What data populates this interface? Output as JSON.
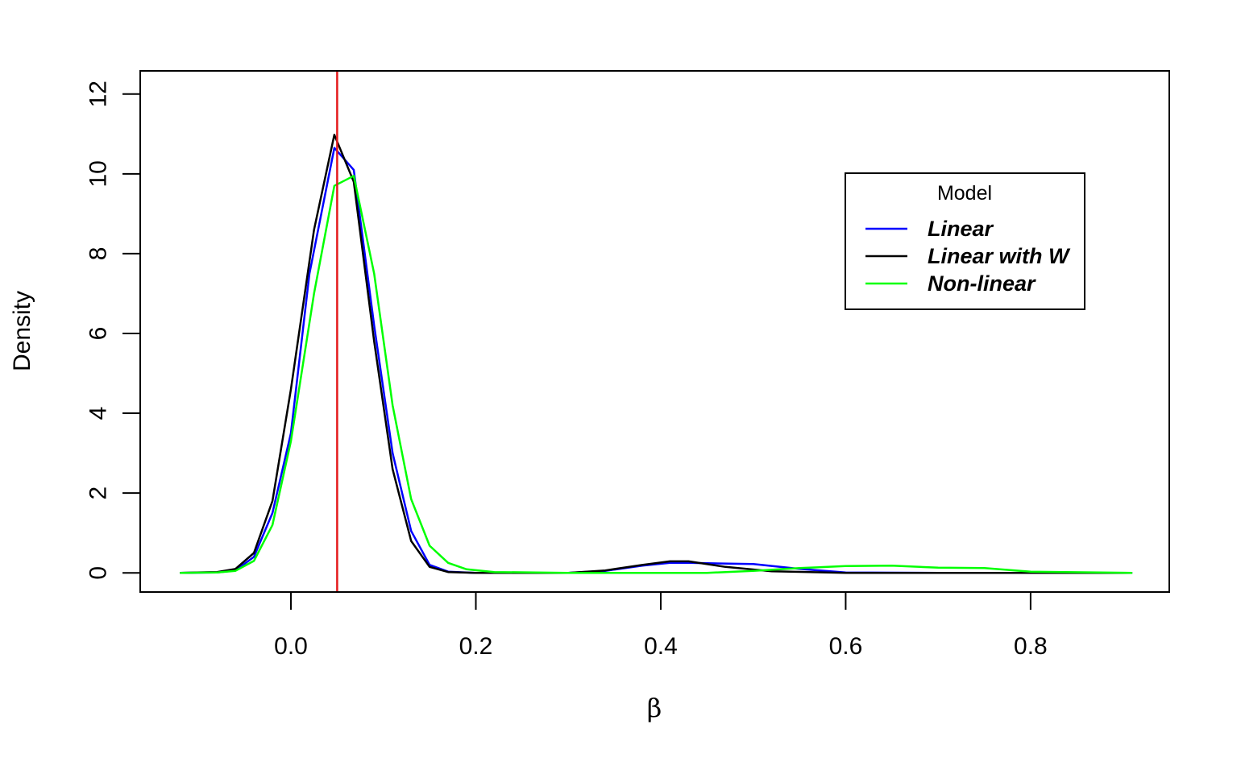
{
  "chart_data": {
    "type": "line",
    "title": "",
    "xlabel": "β",
    "ylabel": "Density",
    "xlim": [
      -0.163,
      0.95
    ],
    "ylim": [
      -0.48,
      12.58
    ],
    "xticks": [
      0.0,
      0.2,
      0.4,
      0.6,
      0.8
    ],
    "xtick_labels": [
      "0.0",
      "0.2",
      "0.4",
      "0.6",
      "0.8"
    ],
    "yticks": [
      0,
      2,
      4,
      6,
      8,
      10,
      12
    ],
    "ytick_labels": [
      "0",
      "2",
      "4",
      "6",
      "8",
      "10",
      "12"
    ],
    "grid": false,
    "legend": {
      "title": "Model",
      "placement": "top-right"
    },
    "reference_line": {
      "x": 0.05,
      "color": "#e41a1c"
    },
    "series": [
      {
        "name": "Linear",
        "color": "#0000ff",
        "points": [
          [
            -0.12,
            0
          ],
          [
            -0.08,
            0.01
          ],
          [
            -0.06,
            0.06
          ],
          [
            -0.04,
            0.4
          ],
          [
            -0.02,
            1.5
          ],
          [
            0.0,
            3.5
          ],
          [
            0.02,
            7.5
          ],
          [
            0.047,
            10.65
          ],
          [
            0.068,
            10.1
          ],
          [
            0.09,
            6.2
          ],
          [
            0.11,
            3.0
          ],
          [
            0.13,
            1.05
          ],
          [
            0.15,
            0.2
          ],
          [
            0.17,
            0.03
          ],
          [
            0.2,
            0
          ],
          [
            0.3,
            0
          ],
          [
            0.34,
            0.05
          ],
          [
            0.38,
            0.18
          ],
          [
            0.41,
            0.25
          ],
          [
            0.43,
            0.25
          ],
          [
            0.5,
            0.22
          ],
          [
            0.55,
            0.1
          ],
          [
            0.6,
            0.01
          ],
          [
            0.7,
            0
          ],
          [
            0.91,
            0
          ]
        ]
      },
      {
        "name": "Linear with W",
        "color": "#000000",
        "points": [
          [
            -0.12,
            0
          ],
          [
            -0.08,
            0.02
          ],
          [
            -0.06,
            0.1
          ],
          [
            -0.04,
            0.5
          ],
          [
            -0.02,
            1.8
          ],
          [
            0.0,
            4.6
          ],
          [
            0.025,
            8.6
          ],
          [
            0.047,
            10.98
          ],
          [
            0.068,
            9.8
          ],
          [
            0.09,
            5.8
          ],
          [
            0.11,
            2.6
          ],
          [
            0.13,
            0.8
          ],
          [
            0.15,
            0.15
          ],
          [
            0.17,
            0.02
          ],
          [
            0.2,
            0
          ],
          [
            0.3,
            0
          ],
          [
            0.34,
            0.06
          ],
          [
            0.38,
            0.2
          ],
          [
            0.41,
            0.29
          ],
          [
            0.43,
            0.29
          ],
          [
            0.47,
            0.15
          ],
          [
            0.52,
            0.04
          ],
          [
            0.6,
            0
          ],
          [
            0.91,
            0
          ]
        ]
      },
      {
        "name": "Non-linear",
        "color": "#00ff00",
        "points": [
          [
            -0.12,
            0
          ],
          [
            -0.08,
            0.01
          ],
          [
            -0.06,
            0.05
          ],
          [
            -0.04,
            0.3
          ],
          [
            -0.02,
            1.2
          ],
          [
            0.0,
            3.3
          ],
          [
            0.025,
            7.0
          ],
          [
            0.047,
            9.7
          ],
          [
            0.068,
            9.95
          ],
          [
            0.09,
            7.5
          ],
          [
            0.11,
            4.2
          ],
          [
            0.13,
            1.85
          ],
          [
            0.15,
            0.68
          ],
          [
            0.17,
            0.25
          ],
          [
            0.19,
            0.09
          ],
          [
            0.22,
            0.02
          ],
          [
            0.3,
            0
          ],
          [
            0.45,
            0
          ],
          [
            0.5,
            0.05
          ],
          [
            0.55,
            0.12
          ],
          [
            0.6,
            0.17
          ],
          [
            0.65,
            0.18
          ],
          [
            0.7,
            0.13
          ],
          [
            0.75,
            0.12
          ],
          [
            0.8,
            0.03
          ],
          [
            0.91,
            0
          ]
        ]
      }
    ]
  }
}
